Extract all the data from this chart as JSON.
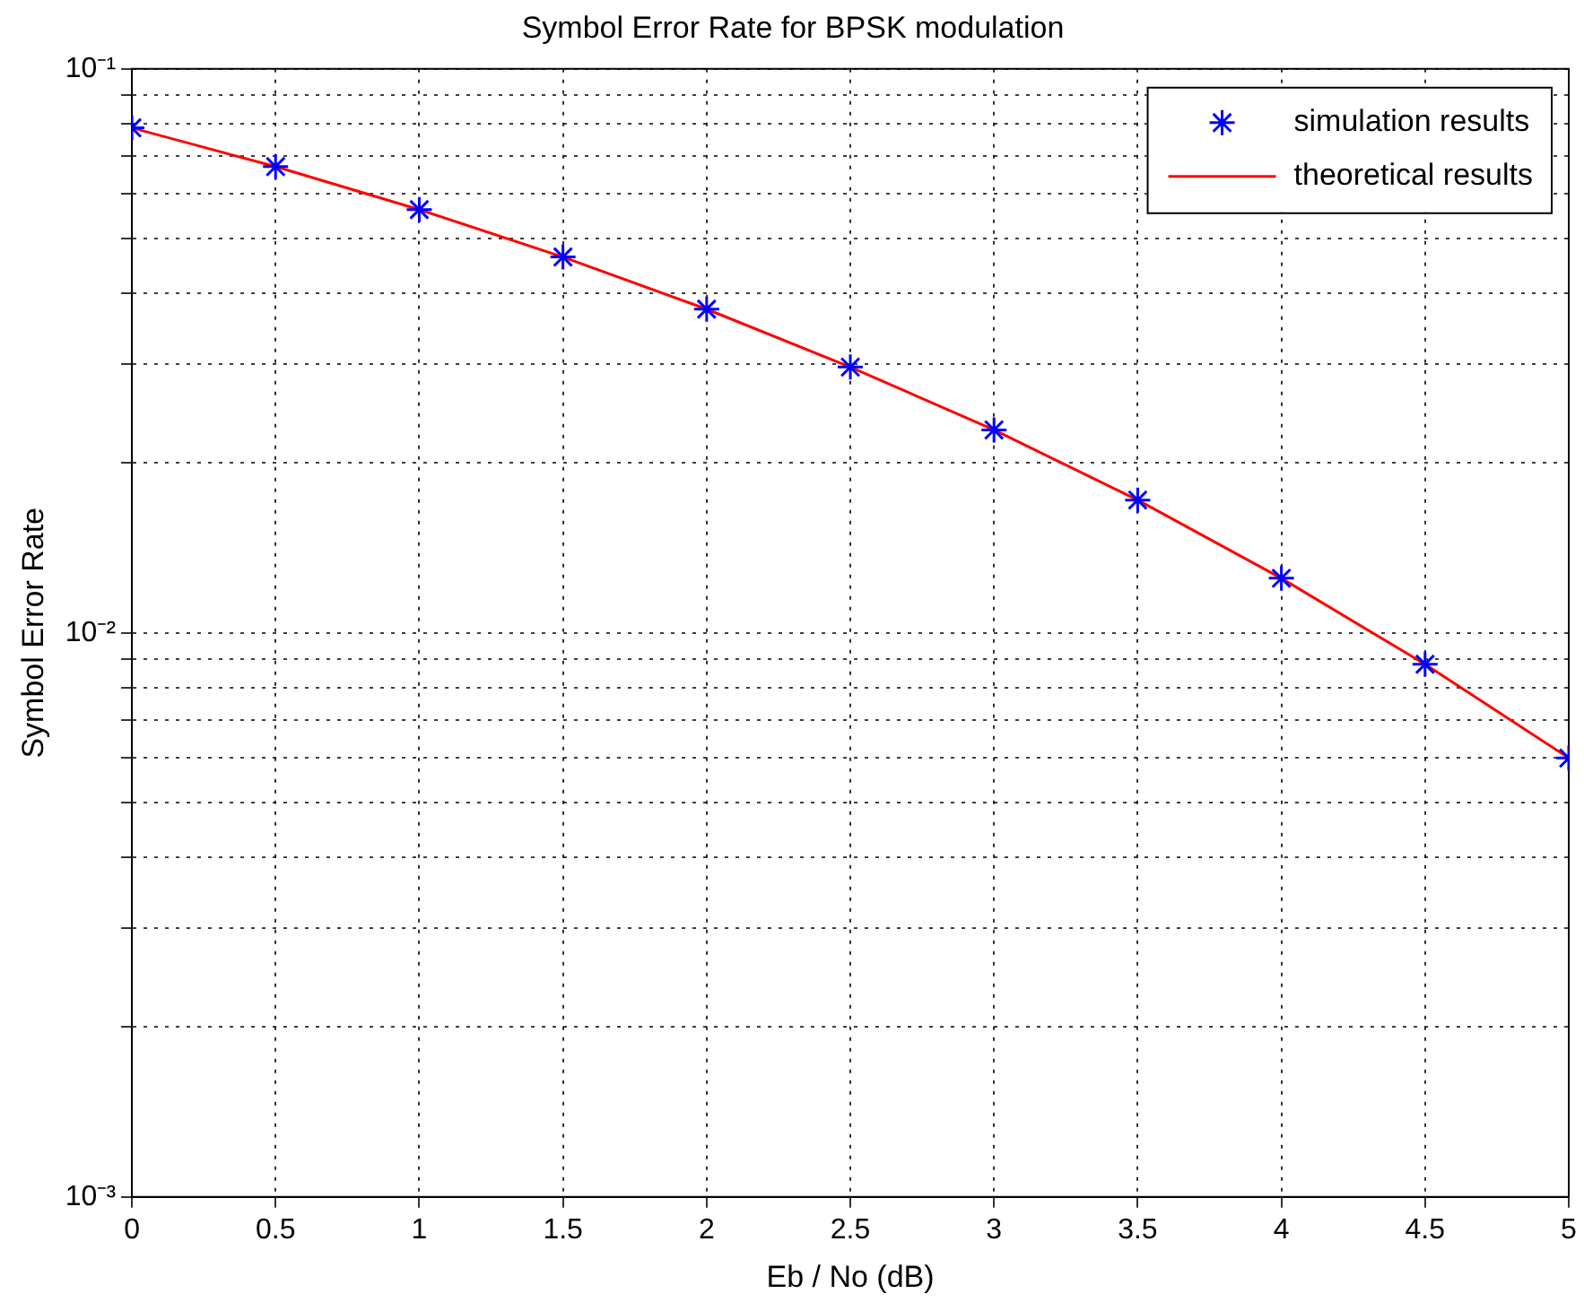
{
  "chart_data": {
    "type": "line",
    "title": "Symbol Error Rate for BPSK modulation",
    "xlabel": "Eb / No (dB)",
    "ylabel": "Symbol Error Rate",
    "x": [
      0,
      0.5,
      1,
      1.5,
      2,
      2.5,
      3,
      3.5,
      4,
      4.5,
      5
    ],
    "series": [
      {
        "name": "simulation results",
        "type": "scatter",
        "color": "#0000ff",
        "marker": "cross",
        "values": [
          0.0786,
          0.0671,
          0.0563,
          0.0464,
          0.0375,
          0.0296,
          0.0229,
          0.0172,
          0.0125,
          0.0088,
          0.006
        ]
      },
      {
        "name": "theoretical results",
        "type": "line",
        "color": "#ff0000",
        "marker": "none",
        "line_style": "solid",
        "values": [
          0.0786,
          0.0671,
          0.0563,
          0.0464,
          0.0375,
          0.0296,
          0.0229,
          0.0172,
          0.0125,
          0.0088,
          0.006
        ]
      }
    ],
    "xlim": [
      0,
      5
    ],
    "xticks": [
      0,
      0.5,
      1,
      1.5,
      2,
      2.5,
      3,
      3.5,
      4,
      4.5,
      5
    ],
    "ylim": [
      0.001,
      0.1
    ],
    "yticks": [
      {
        "value": 0.001,
        "label": "10⁻³"
      },
      {
        "value": 0.002,
        "label": null
      },
      {
        "value": 0.003,
        "label": null
      },
      {
        "value": 0.004,
        "label": null
      },
      {
        "value": 0.005,
        "label": null
      },
      {
        "value": 0.006,
        "label": null
      },
      {
        "value": 0.007,
        "label": null
      },
      {
        "value": 0.008,
        "label": null
      },
      {
        "value": 0.009,
        "label": null
      },
      {
        "value": 0.01,
        "label": "10⁻²"
      },
      {
        "value": 0.02,
        "label": null
      },
      {
        "value": 0.03,
        "label": null
      },
      {
        "value": 0.04,
        "label": null
      },
      {
        "value": 0.05,
        "label": null
      },
      {
        "value": 0.06,
        "label": null
      },
      {
        "value": 0.07,
        "label": null
      },
      {
        "value": 0.08,
        "label": null
      },
      {
        "value": 0.09,
        "label": null
      },
      {
        "value": 0.1,
        "label": "10⁻¹"
      }
    ],
    "log": "y",
    "grid": true,
    "legend": "top right"
  }
}
